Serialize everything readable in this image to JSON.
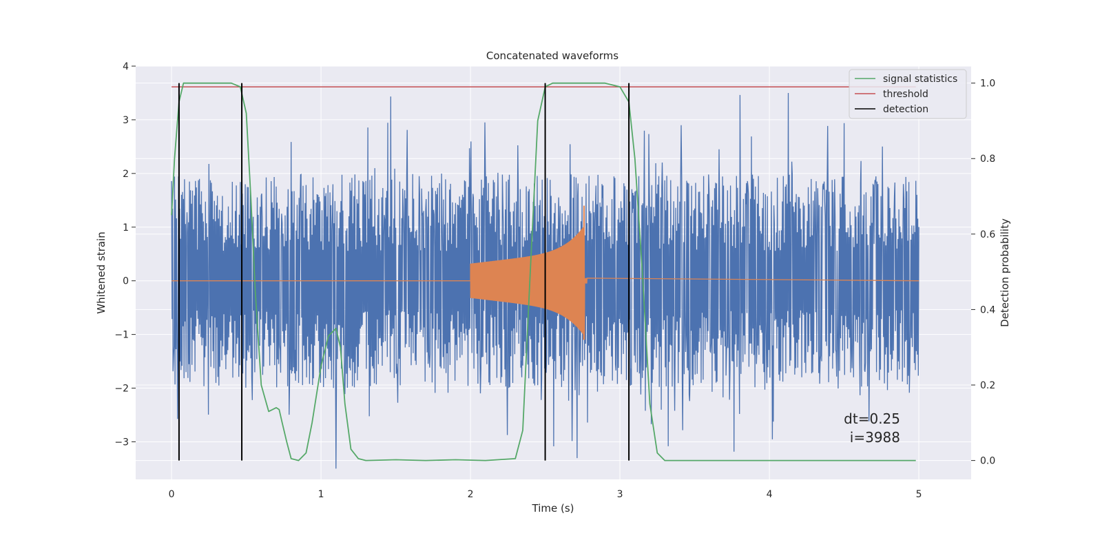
{
  "chart_data": {
    "type": "line",
    "title": "Concatenated waveforms",
    "xlabel": "Time (s)",
    "ylabel": "Whitened strain",
    "y2label": "Detection probability",
    "xlim": [
      -0.24,
      5.35
    ],
    "ylim": [
      -3.7,
      4.0
    ],
    "y2lim": [
      -0.05,
      1.045
    ],
    "x_ticks": [
      0,
      1,
      2,
      3,
      4,
      5
    ],
    "y_ticks": [
      4,
      3,
      2,
      1,
      0,
      -1,
      -2,
      -3
    ],
    "y2_ticks": [
      1.0,
      0.8,
      0.6,
      0.4,
      0.2,
      0.0
    ],
    "grid": true,
    "legend_position": "top-right",
    "colors": {
      "background": "#eaeaf2",
      "grid": "#ffffff",
      "strain": "#4c72b0",
      "injected_signal": "#dd8452",
      "signal_statistics": "#55a868",
      "threshold": "#c44e52",
      "detection": "#000000"
    },
    "series": [
      {
        "name": "signal statistics",
        "axis": "right",
        "x": [
          0,
          0.02,
          0.05,
          0.08,
          0.1,
          0.15,
          0.4,
          0.46,
          0.5,
          0.53,
          0.56,
          0.6,
          0.65,
          0.7,
          0.72,
          0.74,
          0.77,
          0.8,
          0.85,
          0.9,
          0.94,
          1.0,
          1.05,
          1.1,
          1.13,
          1.16,
          1.2,
          1.25,
          1.3,
          1.5,
          1.7,
          1.9,
          2.1,
          2.3,
          2.35,
          2.4,
          2.45,
          2.5,
          2.55,
          2.6,
          2.9,
          3.0,
          3.06,
          3.1,
          3.15,
          3.2,
          3.25,
          3.3,
          3.5,
          4.0,
          4.5,
          4.98
        ],
        "values": [
          0.65,
          0.8,
          0.95,
          1.0,
          1.0,
          1.0,
          1.0,
          0.99,
          0.92,
          0.7,
          0.45,
          0.2,
          0.13,
          0.14,
          0.135,
          0.1,
          0.05,
          0.005,
          0.0,
          0.02,
          0.1,
          0.25,
          0.33,
          0.35,
          0.3,
          0.15,
          0.03,
          0.005,
          0.0,
          0.002,
          0.0,
          0.002,
          0.0,
          0.005,
          0.08,
          0.5,
          0.9,
          0.99,
          1.0,
          1.0,
          1.0,
          0.99,
          0.95,
          0.8,
          0.5,
          0.15,
          0.02,
          0.0,
          0.0,
          0.0,
          0.0,
          0.0
        ]
      },
      {
        "name": "threshold",
        "axis": "right",
        "x": [
          0,
          4.98
        ],
        "values": [
          0.99,
          0.99
        ]
      },
      {
        "name": "detection",
        "axis": "right",
        "vlines": [
          0.05,
          0.47,
          2.5,
          3.06
        ],
        "range": [
          0.0,
          1.0
        ]
      },
      {
        "name": "",
        "axis": "left",
        "kind": "noise",
        "x_range": [
          0,
          5
        ],
        "core_amplitude": 0.85,
        "spike_amplitude": 3.5
      },
      {
        "name": "",
        "axis": "left",
        "kind": "chirp",
        "x_range": [
          2.0,
          2.78
        ],
        "peak_at": 2.76,
        "peak_values": [
          1.4,
          -1.1
        ]
      }
    ],
    "annotations": [
      "dt=0.25",
      "i=3988"
    ]
  }
}
